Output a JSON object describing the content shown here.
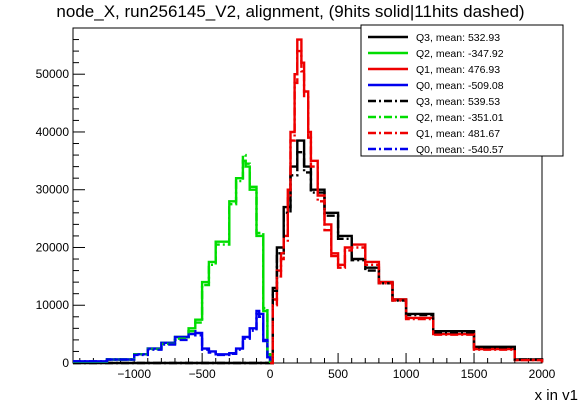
{
  "title": "node_X, run256145_V2, alignment, (9hits solid|11hits dashed)",
  "chart_data": {
    "type": "line",
    "title": "node_X, run256145_V2, alignment, (9hits solid|11hits dashed)",
    "xlabel": "x in v1",
    "ylabel": "",
    "xlim": [
      -1450,
      2000
    ],
    "ylim": [
      0,
      58000
    ],
    "x_ticks": [
      -1000,
      -500,
      0,
      500,
      1000,
      1500,
      2000
    ],
    "y_ticks": [
      0,
      10000,
      20000,
      30000,
      40000,
      50000
    ],
    "x_tick_labels": [
      "−1000",
      "−500",
      "0",
      "500",
      "1000",
      "1500",
      "2000"
    ],
    "y_tick_labels": [
      "0",
      "10000",
      "20000",
      "30000",
      "40000",
      "50000"
    ],
    "grid": false,
    "legend_position": "top-right",
    "series": [
      {
        "name": "Q3, mean: 532.93",
        "color": "#000000",
        "style": "solid",
        "x": [
          -1450,
          -100,
          0,
          20,
          50,
          100,
          150,
          200,
          250,
          300,
          400,
          500,
          600,
          700,
          800,
          900,
          1000,
          1200,
          1500,
          1800,
          2000
        ],
        "y": [
          0,
          0,
          0,
          13000,
          20000,
          27000,
          34000,
          38500,
          34000,
          30000,
          26000,
          22000,
          18000,
          16500,
          14000,
          11000,
          8500,
          5500,
          2800,
          600,
          100
        ]
      },
      {
        "name": "Q2, mean: -347.92",
        "color": "#00dd00",
        "style": "solid",
        "x": [
          -1450,
          -1200,
          -1000,
          -900,
          -800,
          -700,
          -600,
          -550,
          -500,
          -450,
          -400,
          -300,
          -250,
          -200,
          -180,
          -150,
          -100,
          -50,
          -20,
          0
        ],
        "y": [
          200,
          600,
          1500,
          2500,
          3500,
          4500,
          6000,
          7500,
          14000,
          17500,
          21000,
          28000,
          32000,
          35000,
          34000,
          30000,
          22000,
          9000,
          1500,
          0
        ]
      },
      {
        "name": "Q1, mean: 476.93",
        "color": "#ee0000",
        "style": "solid",
        "x": [
          0,
          20,
          50,
          80,
          100,
          130,
          150,
          180,
          200,
          230,
          250,
          280,
          300,
          350,
          400,
          450,
          500,
          550,
          600,
          700,
          800,
          900,
          1000,
          1200,
          1500,
          1800,
          2000
        ],
        "y": [
          0,
          11000,
          16000,
          19000,
          22000,
          30000,
          40000,
          50000,
          56000,
          52000,
          47000,
          40000,
          35000,
          29000,
          24000,
          19000,
          17000,
          20000,
          20500,
          17500,
          14000,
          11000,
          7800,
          5000,
          2400,
          500,
          100
        ]
      },
      {
        "name": "Q0, mean: -509.08",
        "color": "#0000ee",
        "style": "solid",
        "x": [
          -1450,
          -1200,
          -1000,
          -900,
          -800,
          -700,
          -600,
          -550,
          -500,
          -450,
          -400,
          -300,
          -250,
          -200,
          -150,
          -100,
          -80,
          -50,
          -20,
          0
        ],
        "y": [
          300,
          600,
          1500,
          2500,
          3500,
          4500,
          5500,
          5200,
          2500,
          2000,
          1500,
          1700,
          2500,
          4500,
          6000,
          9000,
          8500,
          4000,
          1000,
          0
        ]
      },
      {
        "name": "Q3, mean: 539.53",
        "color": "#000000",
        "style": "dashed",
        "x": [
          -1450,
          -100,
          0,
          20,
          50,
          100,
          150,
          200,
          250,
          300,
          400,
          500,
          600,
          700,
          800,
          900,
          1000,
          1200,
          1500,
          1800,
          2000
        ],
        "y": [
          0,
          0,
          0,
          12500,
          19000,
          26000,
          32500,
          36500,
          33000,
          29500,
          25500,
          21500,
          17800,
          16000,
          13800,
          10800,
          8300,
          5300,
          2700,
          600,
          100
        ]
      },
      {
        "name": "Q2, mean: -351.01",
        "color": "#00dd00",
        "style": "dashed",
        "x": [
          -1450,
          -1200,
          -1000,
          -900,
          -800,
          -700,
          -600,
          -550,
          -500,
          -450,
          -400,
          -300,
          -250,
          -200,
          -180,
          -150,
          -100,
          -50,
          -20,
          0
        ],
        "y": [
          200,
          600,
          1500,
          2400,
          3300,
          4200,
          5500,
          7000,
          13500,
          17000,
          20500,
          27500,
          31500,
          36000,
          34500,
          30500,
          22500,
          9500,
          1500,
          0
        ]
      },
      {
        "name": "Q1, mean: 481.67",
        "color": "#ee0000",
        "style": "dashed",
        "x": [
          0,
          20,
          50,
          80,
          100,
          130,
          150,
          180,
          200,
          230,
          250,
          280,
          300,
          350,
          400,
          450,
          500,
          550,
          600,
          700,
          800,
          900,
          1000,
          1200,
          1500,
          1800,
          2000
        ],
        "y": [
          0,
          10000,
          15000,
          18000,
          21000,
          28500,
          38500,
          48500,
          54000,
          50500,
          46000,
          39000,
          34000,
          28000,
          23000,
          18500,
          16500,
          19500,
          20000,
          17000,
          13800,
          10800,
          7600,
          4900,
          2300,
          500,
          100
        ]
      },
      {
        "name": "Q0, mean: -540.57",
        "color": "#0000ee",
        "style": "dashed",
        "x": [
          -1450,
          -1200,
          -1000,
          -900,
          -800,
          -700,
          -600,
          -550,
          -500,
          -450,
          -400,
          -300,
          -250,
          -200,
          -150,
          -100,
          -80,
          -50,
          -20,
          0
        ],
        "y": [
          300,
          600,
          1400,
          2300,
          3200,
          4000,
          5000,
          4800,
          2300,
          1800,
          1400,
          1600,
          2300,
          4200,
          5600,
          8500,
          8000,
          3800,
          1000,
          0
        ]
      }
    ]
  }
}
